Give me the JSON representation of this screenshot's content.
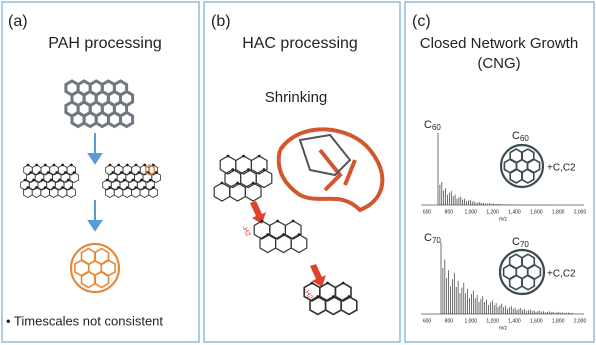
{
  "panels": [
    {
      "label": "(a)",
      "title": "PAH processing",
      "note": "• Timescales not consistent"
    },
    {
      "label": "(b)",
      "title": "HAC processing",
      "subtitle": "Shrinking",
      "step_label": "-H2"
    },
    {
      "label": "(c)",
      "title": "Closed Network Growth",
      "subtitle": "(CNG)",
      "spectra": [
        {
          "peak": {
            "base": "C",
            "sub": "60"
          },
          "molecule": {
            "base": "C",
            "sub": "60"
          },
          "addition": "+C,C2",
          "axis_ticks": [
            "600",
            "800",
            "1,000",
            "1,200",
            "1,400",
            "1,600",
            "1,800",
            "2,000"
          ],
          "axis_label": "m/z"
        },
        {
          "peak": {
            "base": "C",
            "sub": "70"
          },
          "molecule": {
            "base": "C",
            "sub": "70"
          },
          "addition": "+C,C2",
          "axis_ticks": [
            "600",
            "800",
            "1,000",
            "1,200",
            "1,400",
            "1,600",
            "1,800",
            "2,000"
          ],
          "axis_label": "m/z"
        }
      ]
    }
  ]
}
